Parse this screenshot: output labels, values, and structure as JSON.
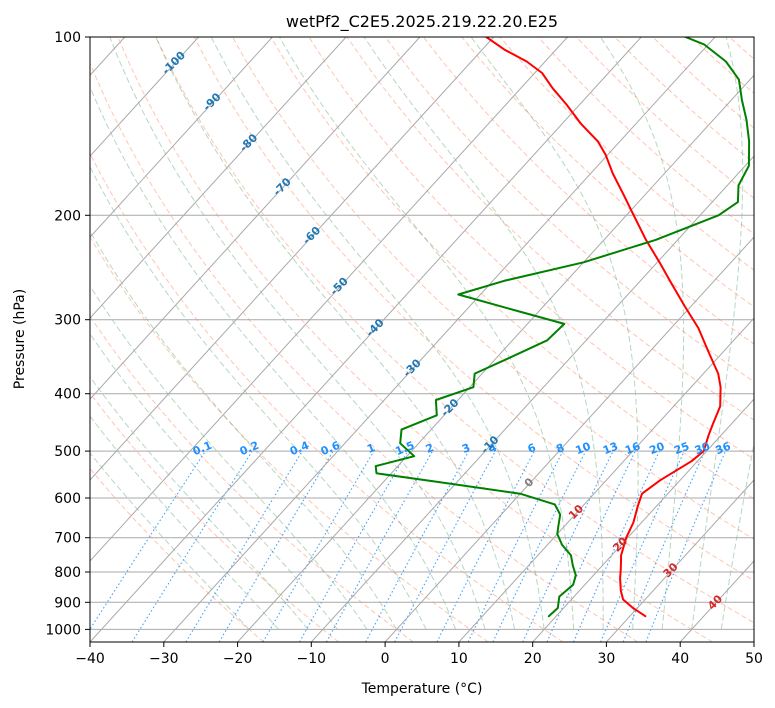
{
  "chart_data": {
    "type": "line",
    "chart_kind": "skew-t log-p",
    "title": "wetPf2_C2E5.2025.219.22.20.E25",
    "xlabel": "Temperature (°C)",
    "ylabel": "Pressure (hPa)",
    "xlim": [
      -40,
      50
    ],
    "ylim": [
      1050,
      100
    ],
    "y_scale": "log",
    "x_ticks": [
      -40,
      -30,
      -20,
      -10,
      0,
      10,
      20,
      30,
      40,
      50
    ],
    "x_tick_labels": [
      "−40",
      "−30",
      "−20",
      "−10",
      "0",
      "10",
      "20",
      "30",
      "40",
      "50"
    ],
    "y_ticks": [
      100,
      200,
      300,
      400,
      500,
      600,
      700,
      800,
      900,
      1000
    ],
    "y_tick_labels": [
      "100",
      "200",
      "300",
      "400",
      "500",
      "600",
      "700",
      "800",
      "900",
      "1000"
    ],
    "grid": true,
    "colors": {
      "temperature": "#ff0000",
      "dewpoint": "#008000",
      "isotherm": "#a9a9a9",
      "dry_adiabat": "#ff7f50",
      "moist_adiabat": "#2e8b57",
      "mixing_ratio": "#1e90ff",
      "label_blue": "#1f77b4",
      "label_red": "#d62728",
      "label_gray": "#7f7f7f"
    },
    "series": [
      {
        "key": "temperature",
        "color": "#ff0000",
        "points": [
          [
            32.1,
            950
          ],
          [
            29.4,
            920
          ],
          [
            27.0,
            890
          ],
          [
            25.6,
            860
          ],
          [
            24.0,
            820
          ],
          [
            22.9,
            790
          ],
          [
            21.3,
            750
          ],
          [
            19.8,
            700
          ],
          [
            18.9,
            660
          ],
          [
            17.5,
            620
          ],
          [
            16.5,
            590
          ],
          [
            17.3,
            560
          ],
          [
            19.2,
            520
          ],
          [
            19.6,
            500
          ],
          [
            18.3,
            470
          ],
          [
            17.5,
            450
          ],
          [
            16.3,
            420
          ],
          [
            14.0,
            390
          ],
          [
            12.0,
            370
          ],
          [
            8.0,
            340
          ],
          [
            3.7,
            310
          ],
          [
            -0.8,
            285
          ],
          [
            -5.2,
            262
          ],
          [
            -9.7,
            240
          ],
          [
            -14.3,
            220
          ],
          [
            -19.0,
            200
          ],
          [
            -22.8,
            185
          ],
          [
            -27.0,
            170
          ],
          [
            -30.3,
            158
          ],
          [
            -33.0,
            150
          ],
          [
            -37.5,
            140
          ],
          [
            -41.8,
            130
          ],
          [
            -45.7,
            122
          ],
          [
            -49.0,
            115
          ],
          [
            -52.5,
            110
          ],
          [
            -57.0,
            105
          ],
          [
            -61.0,
            100
          ]
        ]
      },
      {
        "key": "dewpoint",
        "color": "#008000",
        "points": [
          [
            19.0,
            950
          ],
          [
            19.2,
            920
          ],
          [
            18.0,
            880
          ],
          [
            18.4,
            840
          ],
          [
            17.6,
            810
          ],
          [
            16.0,
            780
          ],
          [
            14.5,
            750
          ],
          [
            12.0,
            720
          ],
          [
            10.0,
            690
          ],
          [
            9.2,
            670
          ],
          [
            8.0,
            640
          ],
          [
            6.0,
            615
          ],
          [
            0.0,
            590
          ],
          [
            -12.0,
            565
          ],
          [
            -22.0,
            545
          ],
          [
            -23.0,
            530
          ],
          [
            -19.0,
            510
          ],
          [
            -22.5,
            485
          ],
          [
            -24.0,
            460
          ],
          [
            -21.0,
            435
          ],
          [
            -23.0,
            410
          ],
          [
            -19.5,
            390
          ],
          [
            -21.0,
            370
          ],
          [
            -18.5,
            350
          ],
          [
            -15.3,
            325
          ],
          [
            -15.0,
            305
          ],
          [
            -23.0,
            290
          ],
          [
            -33.0,
            272
          ],
          [
            -28.5,
            258
          ],
          [
            -20.0,
            240
          ],
          [
            -13.0,
            220
          ],
          [
            -7.5,
            200
          ],
          [
            -6.5,
            190
          ],
          [
            -8.5,
            178
          ],
          [
            -9.5,
            165
          ],
          [
            -12.5,
            150
          ],
          [
            -15.5,
            138
          ],
          [
            -18.5,
            128
          ],
          [
            -21.5,
            118
          ],
          [
            -25.5,
            110
          ],
          [
            -30.5,
            103
          ],
          [
            -34.0,
            100
          ]
        ]
      }
    ],
    "isotherm_labels": [
      "-100",
      "-90",
      "-80",
      "-70",
      "-60",
      "-50",
      "-40",
      "-30",
      "-20",
      "-10",
      "0",
      "10",
      "20",
      "30",
      "40"
    ],
    "mixing_ratio_labels": [
      "0.1",
      "0.2",
      "0.4",
      "0.6",
      "1",
      "1.5",
      "2",
      "3",
      "4",
      "6",
      "8",
      "10",
      "13",
      "16",
      "20",
      "25",
      "30",
      "36"
    ]
  }
}
